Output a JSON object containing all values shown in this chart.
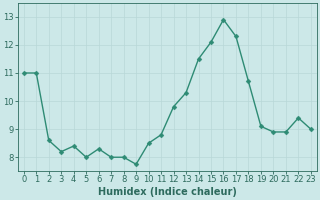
{
  "x": [
    0,
    1,
    2,
    3,
    4,
    5,
    6,
    7,
    8,
    9,
    10,
    11,
    12,
    13,
    14,
    15,
    16,
    17,
    18,
    19,
    20,
    21,
    22,
    23
  ],
  "y": [
    11.0,
    11.0,
    8.6,
    8.2,
    8.4,
    8.0,
    8.3,
    8.0,
    8.0,
    7.75,
    8.5,
    8.8,
    9.8,
    10.3,
    11.5,
    12.1,
    12.9,
    12.3,
    10.7,
    9.1,
    8.9,
    8.9,
    9.4,
    9.0
  ],
  "line_color": "#2e8b74",
  "marker_color": "#2e8b74",
  "bg_color": "#cce8e8",
  "grid_color": "#b8d8d8",
  "xlabel": "Humidex (Indice chaleur)",
  "ylim": [
    7.5,
    13.5
  ],
  "xlim": [
    -0.5,
    23.5
  ],
  "yticks": [
    8,
    9,
    10,
    11,
    12,
    13
  ],
  "xticks": [
    0,
    1,
    2,
    3,
    4,
    5,
    6,
    7,
    8,
    9,
    10,
    11,
    12,
    13,
    14,
    15,
    16,
    17,
    18,
    19,
    20,
    21,
    22,
    23
  ],
  "xtick_labels": [
    "0",
    "1",
    "2",
    "3",
    "4",
    "5",
    "6",
    "7",
    "8",
    "9",
    "10",
    "11",
    "12",
    "13",
    "14",
    "15",
    "16",
    "17",
    "18",
    "19",
    "20",
    "21",
    "22",
    "23"
  ],
  "font_size_ticks": 6,
  "font_size_label": 7,
  "marker_size": 2.5,
  "line_width": 1.0,
  "axis_color": "#2e6b5e",
  "tick_color": "#2e6b5e"
}
